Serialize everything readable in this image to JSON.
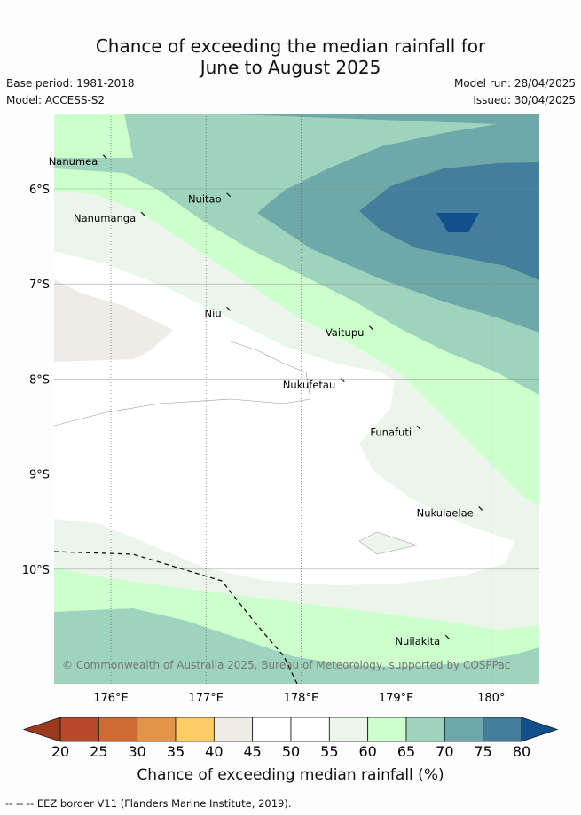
{
  "title_line1": "Chance of exceeding the median rainfall for",
  "title_line2": "June to August 2025",
  "base_period": "Base period: 1981-2018",
  "model": "Model: ACCESS-S2",
  "model_run": "Model run: 28/04/2025",
  "issued": "Issued: 30/04/2025",
  "copyright": "© Commonwealth of Australia 2025, Bureau of Meteorology, supported by COSPPac",
  "lat_labels": [
    "6°S",
    "7°S",
    "8°S",
    "9°S",
    "10°S"
  ],
  "lon_labels": [
    "176°E",
    "177°E",
    "178°E",
    "179°E",
    "180°"
  ],
  "places": [
    {
      "name": "Nanumea",
      "lon": 175.9,
      "lat": -5.7
    },
    {
      "name": "Nuitao",
      "lon": 177.2,
      "lat": -6.1
    },
    {
      "name": "Nanumanga",
      "lon": 176.3,
      "lat": -6.3
    },
    {
      "name": "Niu",
      "lon": 177.2,
      "lat": -7.3
    },
    {
      "name": "Vaitupu",
      "lon": 178.7,
      "lat": -7.5
    },
    {
      "name": "Nukufetau",
      "lon": 178.4,
      "lat": -8.05
    },
    {
      "name": "Funafuti",
      "lon": 179.2,
      "lat": -8.55
    },
    {
      "name": "Nukulaelae",
      "lon": 179.85,
      "lat": -9.4
    },
    {
      "name": "Nuilakita",
      "lon": 179.5,
      "lat": -10.75
    }
  ],
  "colorbar": {
    "ticks": [
      "20",
      "25",
      "30",
      "35",
      "40",
      "45",
      "50",
      "55",
      "60",
      "65",
      "70",
      "75",
      "80"
    ],
    "colors": [
      "#b5492a",
      "#cf6a36",
      "#e29549",
      "#fdcc66",
      "#efebe7",
      "#ffffff",
      "#ffffff",
      "#ebf5eb",
      "#ccffcc",
      "#9ed3bd",
      "#6fa8a8",
      "#437e9d",
      "#134f8c"
    ],
    "label": "Chance of exceeding median rainfall (%)"
  },
  "footer": "-- -- -- EEZ border V11 (Flanders Marine Institute, 2019)."
}
